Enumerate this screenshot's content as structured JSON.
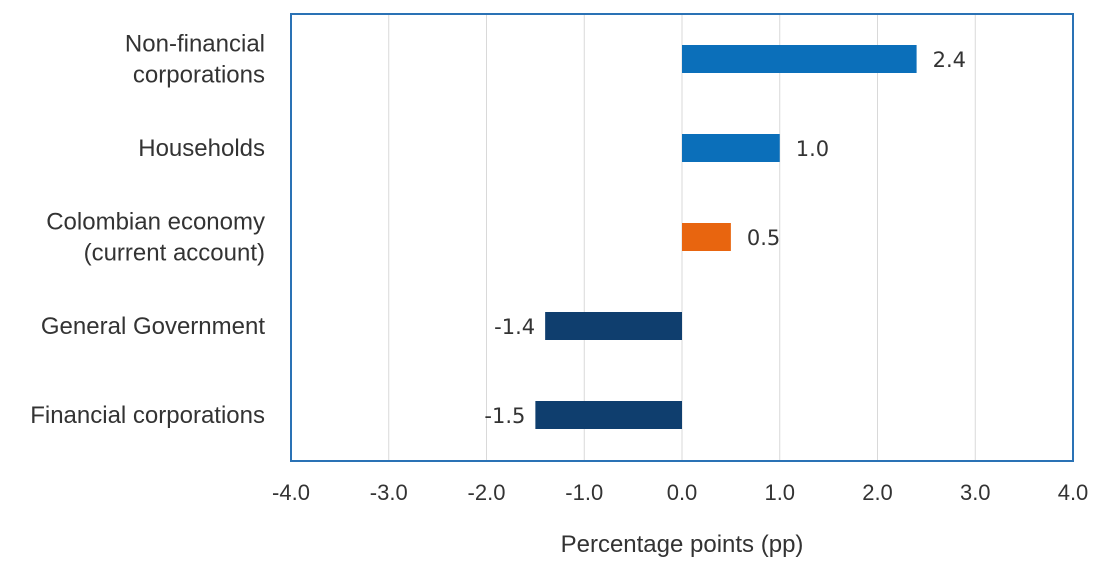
{
  "chart_data": {
    "type": "bar",
    "orientation": "horizontal",
    "categories": [
      [
        "Non-financial",
        "corporations"
      ],
      [
        "Households"
      ],
      [
        "Colombian economy",
        "(current account)"
      ],
      [
        "General Government"
      ],
      [
        "Financial corporations"
      ]
    ],
    "values": [
      2.4,
      1.0,
      0.5,
      -1.4,
      -1.5
    ],
    "value_labels": [
      "2.4",
      "1.0",
      "0.5",
      "-1.4",
      "-1.5"
    ],
    "colors": [
      "#0b6fba",
      "#0b6fba",
      "#e8650f",
      "#0f3e6e",
      "#0f3e6e"
    ],
    "xlabel": "Percentage points (pp)",
    "ylabel": "",
    "title": "",
    "xlim": [
      -4.0,
      4.0
    ],
    "xticks": [
      "-4.0",
      "-3.0",
      "-2.0",
      "-1.0",
      "0.0",
      "1.0",
      "2.0",
      "3.0",
      "4.0"
    ],
    "xtick_values": [
      -4,
      -3,
      -2,
      -1,
      0,
      1,
      2,
      3,
      4
    ],
    "grid": "vertical",
    "legend": "none",
    "border_color": "#2a72b5"
  }
}
